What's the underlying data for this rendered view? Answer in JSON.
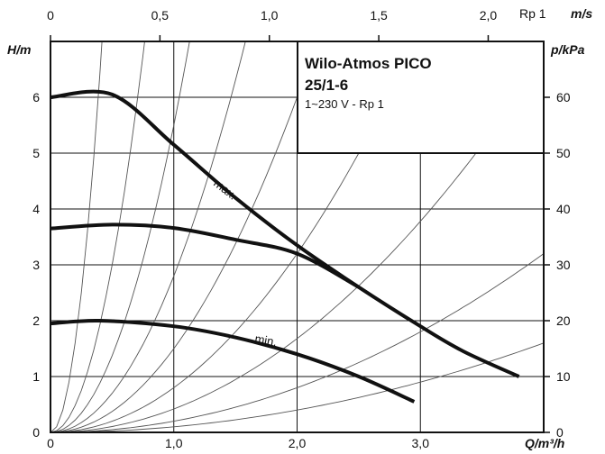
{
  "chart_data": {
    "type": "line",
    "title": "Wilo-Atmos PICO",
    "subtitle": "25/1-6",
    "spec": "1~230 V - Rp 1",
    "xlabel": "Q/m³/h",
    "ylabel_left": "H/m",
    "ylabel_right": "p/kPa",
    "xlabel_top": "m/s",
    "top_pipe_label": "Rp 1",
    "xlim": [
      0,
      4.0
    ],
    "ylim": [
      0,
      7.0
    ],
    "x_ticks": [
      0,
      1.0,
      2.0,
      3.0
    ],
    "x_tick_labels": [
      "0",
      "1,0",
      "2,0",
      "3,0"
    ],
    "y_ticks": [
      0,
      1,
      2,
      3,
      4,
      5,
      6
    ],
    "y_tick_labels": [
      "0",
      "1",
      "2",
      "3",
      "4",
      "5",
      "6"
    ],
    "right_ticks": [
      0,
      10,
      20,
      30,
      40,
      50,
      60
    ],
    "right_tick_labels": [
      "0",
      "10",
      "20",
      "30",
      "40",
      "50",
      "60"
    ],
    "top_ticks": [
      0,
      0.5,
      1.0,
      1.5,
      2.0
    ],
    "top_tick_labels": [
      "0",
      "0,5",
      "1,0",
      "1,5",
      "2,0"
    ],
    "series": [
      {
        "name": "max.",
        "x": [
          0,
          0.5,
          1.0,
          1.5,
          2.0,
          2.5,
          3.0,
          3.35,
          3.8
        ],
        "y": [
          6.0,
          6.05,
          5.15,
          4.2,
          3.35,
          2.6,
          1.9,
          1.45,
          1.0
        ]
      },
      {
        "name": "",
        "x": [
          0,
          0.5,
          1.0,
          1.5,
          2.0,
          2.5
        ],
        "y": [
          3.65,
          3.72,
          3.66,
          3.45,
          3.2,
          2.6
        ]
      },
      {
        "name": "min.",
        "x": [
          0,
          0.4,
          1.0,
          1.5,
          2.0,
          2.5,
          2.95
        ],
        "y": [
          1.95,
          2.0,
          1.9,
          1.7,
          1.4,
          1.0,
          0.55
        ]
      }
    ],
    "system_curve_coefficients": [
      40.0,
      12.0,
      5.5,
      2.8,
      1.5,
      0.8,
      0.42,
      0.2,
      0.1
    ],
    "grid": true
  },
  "colors": {
    "curve": "#111111",
    "grid": "#111111",
    "system_curve": "#555555"
  }
}
